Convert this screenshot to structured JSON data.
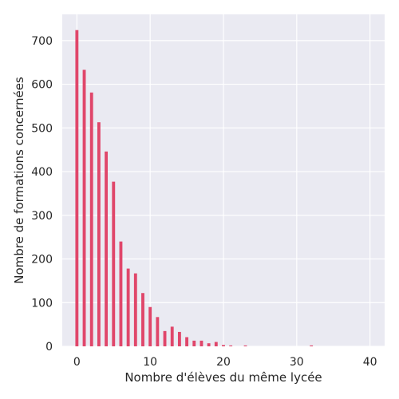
{
  "chart_data": {
    "type": "bar",
    "title": "",
    "xlabel": "Nombre d'élèves du même lycée",
    "ylabel": "Nombre de formations concernées",
    "xlim": [
      -2,
      42
    ],
    "ylim": [
      0,
      760
    ],
    "xticks": [
      0,
      10,
      20,
      30,
      40
    ],
    "yticks": [
      0,
      100,
      200,
      300,
      400,
      500,
      600,
      700
    ],
    "grid": true,
    "bar_color": "#e0466a",
    "background_color": "#eaeaf2",
    "x": [
      0,
      1,
      2,
      3,
      4,
      5,
      6,
      7,
      8,
      9,
      10,
      11,
      12,
      13,
      14,
      15,
      16,
      17,
      18,
      19,
      20,
      21,
      22,
      23,
      24,
      25,
      26,
      27,
      28,
      29,
      30,
      31,
      32,
      33,
      34,
      35,
      36,
      37,
      38,
      39,
      40
    ],
    "values": [
      724,
      633,
      581,
      513,
      446,
      377,
      240,
      178,
      167,
      122,
      90,
      67,
      35,
      45,
      33,
      21,
      13,
      13,
      7,
      10,
      3,
      2,
      0,
      2,
      0,
      0,
      0,
      0,
      0,
      0,
      0,
      0,
      2,
      0,
      0,
      0,
      0,
      0,
      0,
      0,
      0
    ]
  }
}
